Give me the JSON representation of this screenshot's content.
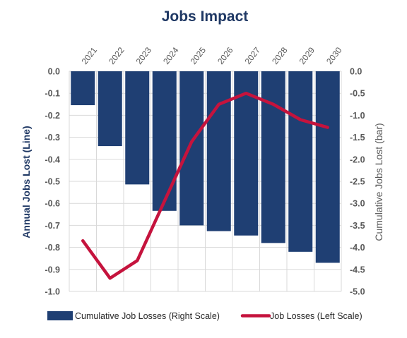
{
  "chart_data": {
    "type": "bar+line",
    "title": "Jobs Impact",
    "categories": [
      "2021",
      "2022",
      "2023",
      "2024",
      "2025",
      "2026",
      "2027",
      "2028",
      "2029",
      "2030"
    ],
    "left_axis": {
      "label": "Annual Jobs Lost (Line)",
      "ylim": [
        -1.0,
        0.0
      ],
      "ticks": [
        "0.0",
        "-0.1",
        "-0.2",
        "-0.3",
        "-0.4",
        "-0.5",
        "-0.6",
        "-0.7",
        "-0.8",
        "-0.9",
        "-1.0"
      ]
    },
    "right_axis": {
      "label": "Cumulative Jobs Lost (bar)",
      "ylim": [
        -5.0,
        0.0
      ],
      "ticks": [
        "0.0",
        "-0.5",
        "-1.0",
        "-1.5",
        "-2.0",
        "-2.5",
        "-3.0",
        "-3.5",
        "-4.0",
        "-4.5",
        "-5.0"
      ]
    },
    "series": [
      {
        "name": "Cumulative Job Losses (Right Scale)",
        "type": "bar",
        "axis": "right",
        "color": "#1f3f73",
        "values": [
          -0.77,
          -1.7,
          -2.57,
          -3.17,
          -3.5,
          -3.63,
          -3.73,
          -3.9,
          -4.1,
          -4.35
        ]
      },
      {
        "name": "Job Losses (Left Scale)",
        "type": "line",
        "axis": "left",
        "color": "#c5133d",
        "values": [
          -0.77,
          -0.94,
          -0.86,
          -0.59,
          -0.32,
          -0.15,
          -0.1,
          -0.15,
          -0.22,
          -0.255
        ]
      }
    ],
    "grid": true,
    "legend_position": "bottom"
  }
}
